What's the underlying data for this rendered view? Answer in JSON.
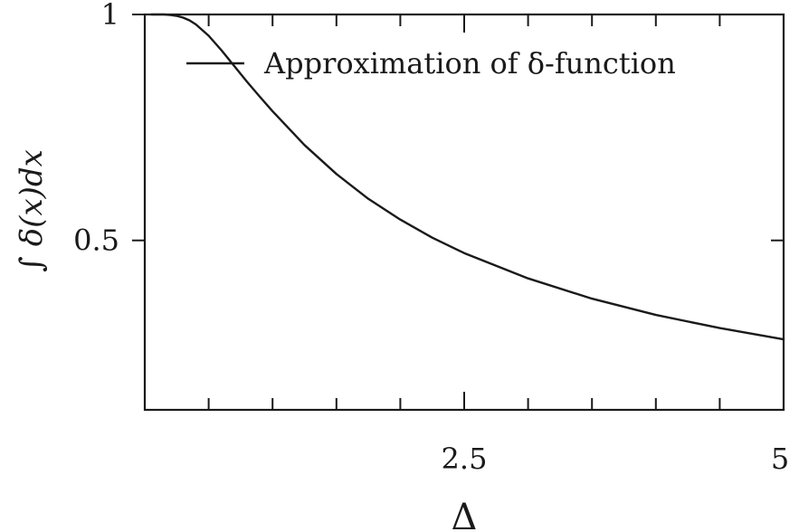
{
  "chart_data": {
    "type": "line",
    "xlabel": "Δ",
    "ylabel": "∫ δ(x)dx",
    "xlim": [
      0.0,
      5.0
    ],
    "ylim": [
      0.125,
      1.0
    ],
    "x_major_ticks": [
      2.5,
      5
    ],
    "x_tick_labels": [
      "2.5",
      "5"
    ],
    "x_minor_ticks": [
      0.5,
      1.0,
      1.5,
      2.0,
      3.0,
      3.5,
      4.0,
      4.5
    ],
    "y_major_ticks": [
      0.5,
      1
    ],
    "y_tick_labels": [
      "0.5",
      "1"
    ],
    "legend": {
      "position": "top-right",
      "entries": [
        "Approximation of δ-function"
      ]
    },
    "grid": false,
    "series": [
      {
        "name": "Approximation of δ-function",
        "color": "#1a1a1a",
        "x": [
          0.05,
          0.1,
          0.15,
          0.2,
          0.25,
          0.3,
          0.35,
          0.4,
          0.5,
          0.6,
          0.7,
          0.8,
          0.9,
          1.0,
          1.25,
          1.5,
          1.75,
          2.0,
          2.25,
          2.5,
          3.0,
          3.5,
          4.0,
          4.5,
          5.0
        ],
        "y": [
          1.0,
          1.0,
          1.0,
          0.999,
          0.997,
          0.993,
          0.987,
          0.978,
          0.953,
          0.921,
          0.886,
          0.851,
          0.818,
          0.786,
          0.711,
          0.647,
          0.592,
          0.546,
          0.506,
          0.472,
          0.416,
          0.371,
          0.335,
          0.306,
          0.281
        ]
      }
    ]
  }
}
